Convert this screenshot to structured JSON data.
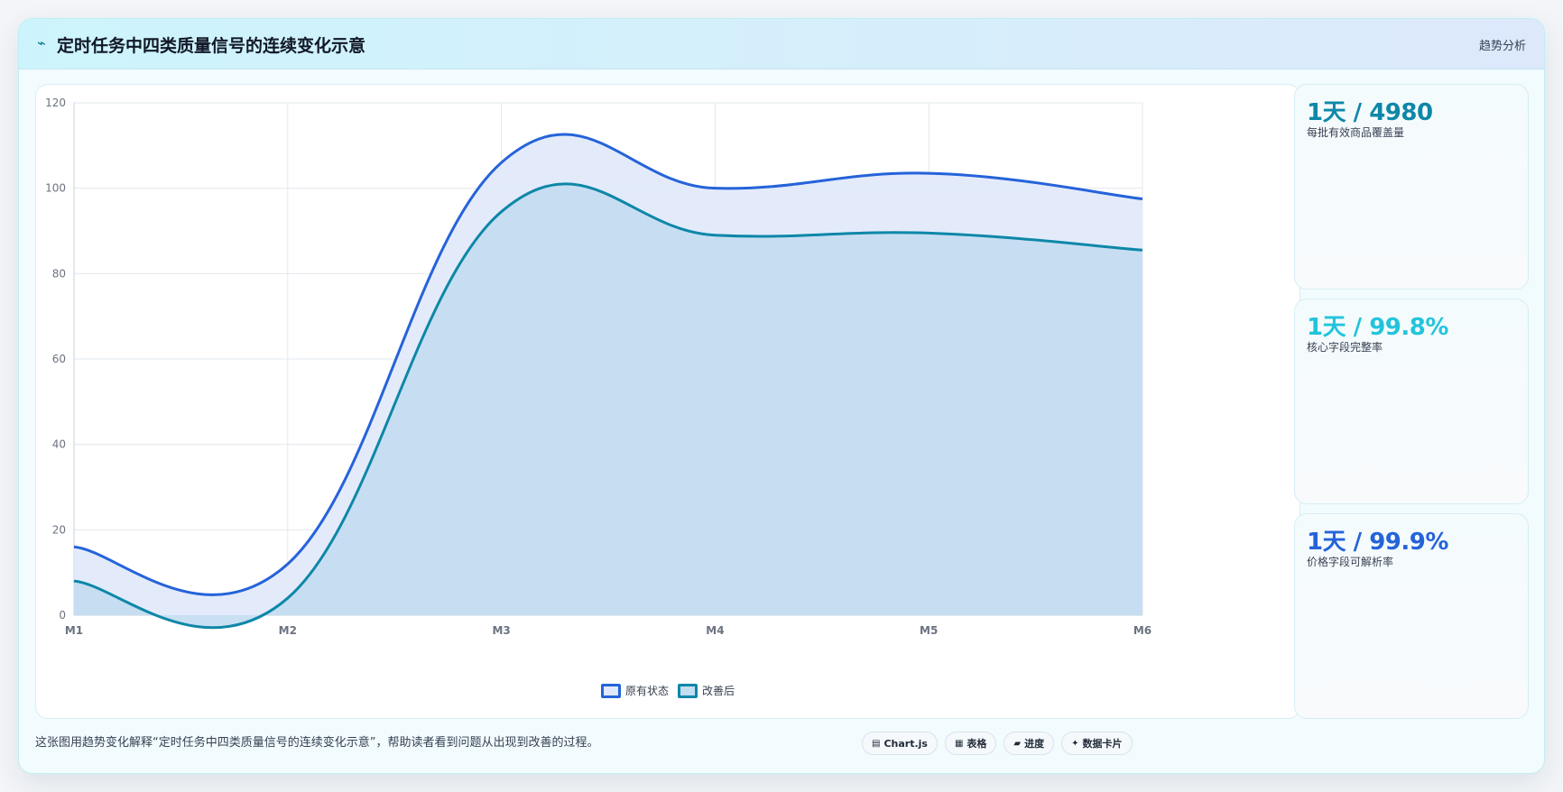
{
  "header": {
    "icon": "trend-line-icon",
    "title": "定时任务中四类质量信号的连续变化示意",
    "tag": "趋势分析"
  },
  "chart_data": {
    "type": "area",
    "categories": [
      "M1",
      "M2",
      "M3",
      "M4",
      "M5",
      "M6"
    ],
    "ylim": [
      0,
      120
    ],
    "yticks": [
      0,
      20,
      40,
      60,
      80,
      100,
      120
    ],
    "grid": true,
    "legend_position": "bottom-center",
    "title": "",
    "xlabel": "",
    "ylabel": "",
    "series": [
      {
        "name": "原有状态",
        "values": [
          16,
          12,
          106,
          100,
          103.5,
          97.5
        ],
        "color": "#2563d9",
        "fill": "#e0e9fb"
      },
      {
        "name": "改善后",
        "values": [
          8,
          4,
          94.5,
          89,
          89.5,
          85.5
        ],
        "color": "#0e87a8",
        "fill": "#c3ddf1"
      }
    ]
  },
  "stats": [
    {
      "value": "1天 / 4980",
      "label": "每批有效商品覆盖量",
      "color": "#0e87a8"
    },
    {
      "value": "1天 / 99.8%",
      "label": "核心字段完整率",
      "color": "#22c4dc"
    },
    {
      "value": "1天 / 99.9%",
      "label": "价格字段可解析率",
      "color": "#2563d9"
    }
  ],
  "footnote": "这张图用趋势变化解释“定时任务中四类质量信号的连续变化示意”，帮助读者看到问题从出现到改善的过程。",
  "chips": [
    {
      "icon": "chart-icon",
      "glyph": "▤",
      "label": "Chart.js"
    },
    {
      "icon": "table-icon",
      "glyph": "▦",
      "label": "表格"
    },
    {
      "icon": "progress-icon",
      "glyph": "▰",
      "label": "进度"
    },
    {
      "icon": "data-card-icon",
      "glyph": "✦",
      "label": "数据卡片"
    }
  ]
}
